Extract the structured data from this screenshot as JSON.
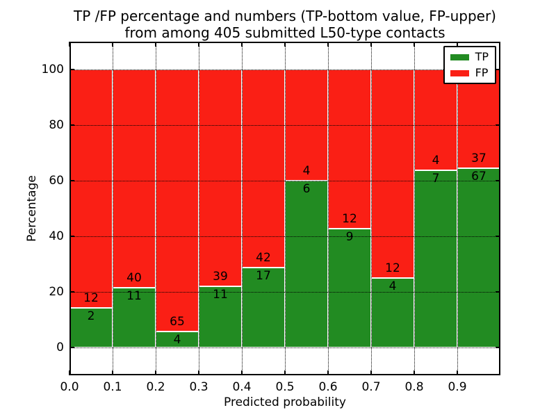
{
  "chart_data": {
    "type": "bar",
    "stacked": true,
    "normalized": "percent",
    "title_line1": "TP /FP percentage and numbers (TP-bottom value, FP-upper)",
    "title_line2": "from among 405 submitted L50-type contacts",
    "xlabel": "Predicted probability",
    "ylabel": "Percentage",
    "xlim": [
      0.0,
      1.0
    ],
    "ylim": [
      -10,
      110
    ],
    "yticks": [
      0,
      20,
      40,
      60,
      80,
      100
    ],
    "xtick_labels": [
      "0.0",
      "0.1",
      "0.2",
      "0.3",
      "0.4",
      "0.5",
      "0.6",
      "0.7",
      "0.8",
      "0.9"
    ],
    "bin_width": 0.1,
    "grid": "dotted both axes, drawn above bars",
    "bars": [
      {
        "bin_start": 0.0,
        "tp": 2,
        "fp": 12,
        "tp_percent": 14.3
      },
      {
        "bin_start": 0.1,
        "tp": 11,
        "fp": 40,
        "tp_percent": 21.6
      },
      {
        "bin_start": 0.2,
        "tp": 4,
        "fp": 65,
        "tp_percent": 5.8
      },
      {
        "bin_start": 0.3,
        "tp": 11,
        "fp": 39,
        "tp_percent": 22.0
      },
      {
        "bin_start": 0.4,
        "tp": 17,
        "fp": 42,
        "tp_percent": 28.8
      },
      {
        "bin_start": 0.5,
        "tp": 6,
        "fp": 4,
        "tp_percent": 60.0
      },
      {
        "bin_start": 0.6,
        "tp": 9,
        "fp": 12,
        "tp_percent": 42.9
      },
      {
        "bin_start": 0.7,
        "tp": 4,
        "fp": 12,
        "tp_percent": 25.0
      },
      {
        "bin_start": 0.8,
        "tp": 7,
        "fp": 4,
        "tp_percent": 63.6
      },
      {
        "bin_start": 0.9,
        "tp": 67,
        "fp": 37,
        "tp_percent": 64.4
      }
    ],
    "legend": {
      "position": "upper right",
      "entries": [
        {
          "label": "TP",
          "color": "#228B22"
        },
        {
          "label": "FP",
          "color": "#FA1F15"
        }
      ]
    },
    "colors": {
      "tp": "#228B22",
      "fp": "#FA1F15",
      "bar_edge": "#FFFFFF",
      "text": "#000000",
      "background": "#FFFFFF"
    }
  }
}
